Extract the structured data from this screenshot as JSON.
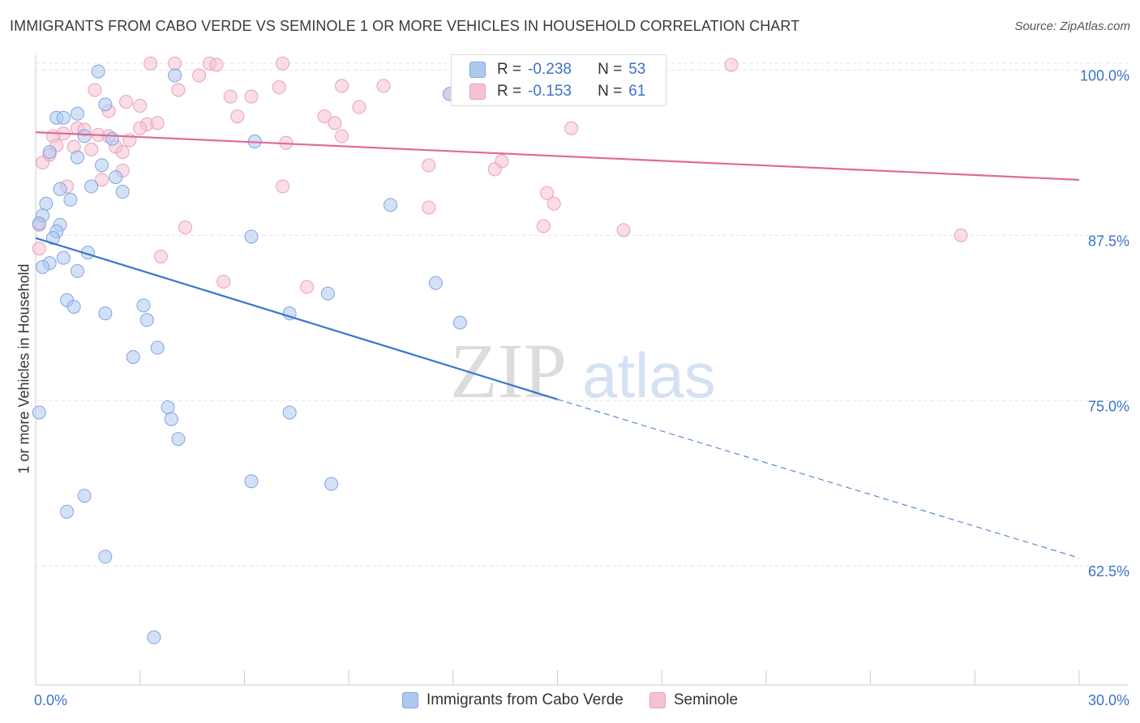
{
  "title": "IMMIGRANTS FROM CABO VERDE VS SEMINOLE 1 OR MORE VEHICLES IN HOUSEHOLD CORRELATION CHART",
  "source": "Source: ZipAtlas.com",
  "watermark": {
    "zip": "ZIP",
    "atlas": "atlas"
  },
  "colors": {
    "blue_fill": "#aec9f0",
    "blue_stroke": "#7fa6df",
    "blue_line": "#3a75cc",
    "pink_fill": "#f6c1d2",
    "pink_stroke": "#eaa0bb",
    "pink_line": "#e06b95",
    "axis_text": "#3b73c8",
    "grid": "#e3e3e3"
  },
  "legend_top": {
    "rows": [
      {
        "r_label": "R =",
        "r_value": "-0.238",
        "n_label": "N =",
        "n_value": "53"
      },
      {
        "r_label": "R =",
        "r_value": "-0.153",
        "n_label": "N =",
        "n_value": "61"
      }
    ]
  },
  "chart_data": {
    "type": "scatter",
    "title": "IMMIGRANTS FROM CABO VERDE VS SEMINOLE 1 OR MORE VEHICLES IN HOUSEHOLD CORRELATION CHART",
    "xlabel": "",
    "ylabel": "1 or more Vehicles in Household",
    "xlim": [
      0,
      30
    ],
    "ylim": [
      53.5,
      101.5
    ],
    "x_tick_labels": [
      {
        "value": 0,
        "label": "0.0%"
      },
      {
        "value": 30,
        "label": "30.0%"
      }
    ],
    "y_ticks": [
      {
        "value": 100.0,
        "label": "100.0%"
      },
      {
        "value": 87.5,
        "label": "87.5%"
      },
      {
        "value": 75.0,
        "label": "75.0%"
      },
      {
        "value": 62.5,
        "label": "62.5%"
      }
    ],
    "x_minor_ticks": [
      0,
      3,
      6,
      9,
      12,
      15,
      18,
      21,
      24,
      27,
      30
    ],
    "series": [
      {
        "name": "Immigrants from Cabo Verde",
        "color": "blue",
        "trend": {
          "x0": 0,
          "y0": 87.3,
          "x1": 15,
          "y1": 75.1,
          "dash_x1": 30,
          "dash_y1": 63.1
        },
        "points": [
          {
            "x": 1.8,
            "y": 99.9
          },
          {
            "x": 4.0,
            "y": 99.6
          },
          {
            "x": 2.0,
            "y": 97.4
          },
          {
            "x": 1.2,
            "y": 96.7
          },
          {
            "x": 0.6,
            "y": 96.4
          },
          {
            "x": 0.8,
            "y": 96.4
          },
          {
            "x": 1.4,
            "y": 95.0
          },
          {
            "x": 2.2,
            "y": 94.8
          },
          {
            "x": 6.3,
            "y": 94.6
          },
          {
            "x": 0.4,
            "y": 93.8
          },
          {
            "x": 1.2,
            "y": 93.4
          },
          {
            "x": 1.9,
            "y": 92.8
          },
          {
            "x": 2.3,
            "y": 91.9
          },
          {
            "x": 1.6,
            "y": 91.2
          },
          {
            "x": 0.7,
            "y": 91.0
          },
          {
            "x": 2.5,
            "y": 90.8
          },
          {
            "x": 1.0,
            "y": 90.2
          },
          {
            "x": 0.3,
            "y": 89.9
          },
          {
            "x": 10.2,
            "y": 89.8
          },
          {
            "x": 0.2,
            "y": 89.0
          },
          {
            "x": 0.1,
            "y": 88.4
          },
          {
            "x": 0.7,
            "y": 88.3
          },
          {
            "x": 0.6,
            "y": 87.8
          },
          {
            "x": 0.5,
            "y": 87.3
          },
          {
            "x": 6.2,
            "y": 87.4
          },
          {
            "x": 1.5,
            "y": 86.2
          },
          {
            "x": 0.8,
            "y": 85.8
          },
          {
            "x": 0.4,
            "y": 85.4
          },
          {
            "x": 0.2,
            "y": 85.1
          },
          {
            "x": 1.2,
            "y": 84.8
          },
          {
            "x": 11.5,
            "y": 83.9
          },
          {
            "x": 8.4,
            "y": 83.1
          },
          {
            "x": 0.9,
            "y": 82.6
          },
          {
            "x": 1.1,
            "y": 82.1
          },
          {
            "x": 3.1,
            "y": 82.2
          },
          {
            "x": 2.0,
            "y": 81.6
          },
          {
            "x": 7.3,
            "y": 81.6
          },
          {
            "x": 3.2,
            "y": 81.1
          },
          {
            "x": 12.2,
            "y": 80.9
          },
          {
            "x": 3.5,
            "y": 79.0
          },
          {
            "x": 2.8,
            "y": 78.3
          },
          {
            "x": 3.8,
            "y": 74.5
          },
          {
            "x": 7.3,
            "y": 74.1
          },
          {
            "x": 0.1,
            "y": 74.1
          },
          {
            "x": 3.9,
            "y": 73.6
          },
          {
            "x": 4.1,
            "y": 72.1
          },
          {
            "x": 6.2,
            "y": 68.9
          },
          {
            "x": 8.5,
            "y": 68.7
          },
          {
            "x": 1.4,
            "y": 67.8
          },
          {
            "x": 0.9,
            "y": 66.6
          },
          {
            "x": 2.0,
            "y": 63.2
          },
          {
            "x": 3.4,
            "y": 57.1
          },
          {
            "x": 11.9,
            "y": 98.2
          }
        ]
      },
      {
        "name": "Seminole",
        "color": "pink",
        "trend": {
          "x0": 0,
          "y0": 95.3,
          "x1": 30,
          "y1": 91.7
        },
        "points": [
          {
            "x": 3.3,
            "y": 100.5
          },
          {
            "x": 4.0,
            "y": 100.5
          },
          {
            "x": 5.0,
            "y": 100.5
          },
          {
            "x": 5.2,
            "y": 100.4
          },
          {
            "x": 7.1,
            "y": 100.5
          },
          {
            "x": 20.0,
            "y": 100.4
          },
          {
            "x": 4.7,
            "y": 99.6
          },
          {
            "x": 7.0,
            "y": 98.7
          },
          {
            "x": 8.8,
            "y": 98.8
          },
          {
            "x": 10.0,
            "y": 98.8
          },
          {
            "x": 1.7,
            "y": 98.5
          },
          {
            "x": 4.1,
            "y": 98.5
          },
          {
            "x": 11.9,
            "y": 98.2
          },
          {
            "x": 5.6,
            "y": 98.0
          },
          {
            "x": 6.2,
            "y": 98.0
          },
          {
            "x": 2.6,
            "y": 97.6
          },
          {
            "x": 3.0,
            "y": 97.3
          },
          {
            "x": 9.3,
            "y": 97.2
          },
          {
            "x": 2.1,
            "y": 96.9
          },
          {
            "x": 5.8,
            "y": 96.5
          },
          {
            "x": 8.3,
            "y": 96.5
          },
          {
            "x": 8.6,
            "y": 96.0
          },
          {
            "x": 3.2,
            "y": 95.9
          },
          {
            "x": 1.2,
            "y": 95.6
          },
          {
            "x": 3.0,
            "y": 95.6
          },
          {
            "x": 1.4,
            "y": 95.5
          },
          {
            "x": 15.4,
            "y": 95.6
          },
          {
            "x": 0.8,
            "y": 95.2
          },
          {
            "x": 1.8,
            "y": 95.1
          },
          {
            "x": 2.1,
            "y": 95.0
          },
          {
            "x": 8.8,
            "y": 95.0
          },
          {
            "x": 0.5,
            "y": 95.0
          },
          {
            "x": 2.7,
            "y": 94.7
          },
          {
            "x": 7.2,
            "y": 94.5
          },
          {
            "x": 0.6,
            "y": 94.3
          },
          {
            "x": 1.1,
            "y": 94.2
          },
          {
            "x": 2.3,
            "y": 94.2
          },
          {
            "x": 1.6,
            "y": 94.0
          },
          {
            "x": 2.5,
            "y": 93.8
          },
          {
            "x": 0.2,
            "y": 93.0
          },
          {
            "x": 13.4,
            "y": 93.1
          },
          {
            "x": 11.3,
            "y": 92.8
          },
          {
            "x": 13.2,
            "y": 92.5
          },
          {
            "x": 2.5,
            "y": 92.4
          },
          {
            "x": 1.9,
            "y": 91.7
          },
          {
            "x": 0.9,
            "y": 91.2
          },
          {
            "x": 7.1,
            "y": 91.2
          },
          {
            "x": 14.7,
            "y": 90.7
          },
          {
            "x": 14.9,
            "y": 89.9
          },
          {
            "x": 11.3,
            "y": 89.6
          },
          {
            "x": 0.1,
            "y": 88.3
          },
          {
            "x": 4.3,
            "y": 88.1
          },
          {
            "x": 14.6,
            "y": 88.2
          },
          {
            "x": 16.9,
            "y": 87.9
          },
          {
            "x": 26.6,
            "y": 87.5
          },
          {
            "x": 0.1,
            "y": 86.5
          },
          {
            "x": 3.6,
            "y": 85.9
          },
          {
            "x": 5.4,
            "y": 84.0
          },
          {
            "x": 7.8,
            "y": 83.6
          },
          {
            "x": 3.5,
            "y": 96.0
          },
          {
            "x": 0.4,
            "y": 93.6
          }
        ]
      }
    ]
  }
}
